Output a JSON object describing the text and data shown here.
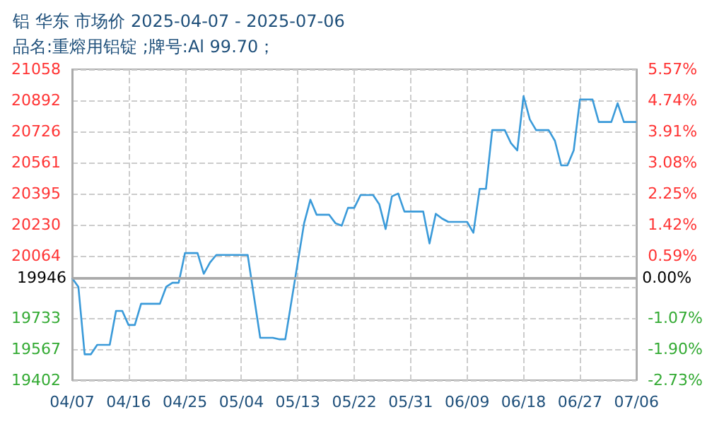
{
  "chart_data": {
    "type": "line",
    "title": "铝 华东 市场价 2025-04-07 - 2025-07-06",
    "subtitle": "品名:重熔用铝锭 ;牌号:Al 99.70；",
    "x": [
      "2025-04-07",
      "2025-04-08",
      "2025-04-09",
      "2025-04-10",
      "2025-04-11",
      "2025-04-13",
      "2025-04-14",
      "2025-04-15",
      "2025-04-16",
      "2025-04-17",
      "2025-04-18",
      "2025-04-21",
      "2025-04-22",
      "2025-04-23",
      "2025-04-24",
      "2025-04-25",
      "2025-04-27",
      "2025-04-28",
      "2025-04-29",
      "2025-04-30",
      "2025-05-05",
      "2025-05-07",
      "2025-05-09",
      "2025-05-10",
      "2025-05-11",
      "2025-05-14",
      "2025-05-15",
      "2025-05-16",
      "2025-05-18",
      "2025-05-19",
      "2025-05-20",
      "2025-05-21",
      "2025-05-22",
      "2025-05-23",
      "2025-05-25",
      "2025-05-26",
      "2025-05-27",
      "2025-05-28",
      "2025-05-29",
      "2025-05-30",
      "2025-06-02",
      "2025-06-03",
      "2025-06-04",
      "2025-06-05",
      "2025-06-06",
      "2025-06-09",
      "2025-06-10",
      "2025-06-11",
      "2025-06-12",
      "2025-06-13",
      "2025-06-15",
      "2025-06-16",
      "2025-06-17",
      "2025-06-18",
      "2025-06-19",
      "2025-06-20",
      "2025-06-22",
      "2025-06-23",
      "2025-06-24",
      "2025-06-25",
      "2025-06-26",
      "2025-06-27",
      "2025-06-29",
      "2025-06-30",
      "2025-07-02",
      "2025-07-03",
      "2025-07-04",
      "2025-07-06"
    ],
    "series": [
      {
        "color": "#3a9ad9",
        "values": [
          19946,
          19899,
          19540,
          19540,
          19590,
          19590,
          19771,
          19771,
          19696,
          19696,
          19809,
          19809,
          19899,
          19921,
          19921,
          20079,
          20079,
          19969,
          20029,
          20069,
          20069,
          19628,
          19628,
          19620,
          19620,
          20238,
          20363,
          20283,
          20283,
          20238,
          20225,
          20320,
          20320,
          20388,
          20388,
          20338,
          20207,
          20381,
          20396,
          20300,
          20300,
          20130,
          20288,
          20263,
          20245,
          20245,
          20187,
          20421,
          20421,
          20734,
          20734,
          20664,
          20626,
          20915,
          20790,
          20734,
          20734,
          20677,
          20546,
          20546,
          20626,
          20897,
          20897,
          20777,
          20777,
          20877,
          20777,
          20777
        ]
      }
    ],
    "xlim": [
      "2025-04-07",
      "2025-07-06"
    ],
    "xticks": [
      {
        "value": "2025-04-07",
        "label": "04/07"
      },
      {
        "value": "2025-04-16",
        "label": "04/16"
      },
      {
        "value": "2025-04-25",
        "label": "04/25"
      },
      {
        "value": "2025-05-04",
        "label": "05/04"
      },
      {
        "value": "2025-05-13",
        "label": "05/13"
      },
      {
        "value": "2025-05-22",
        "label": "05/22"
      },
      {
        "value": "2025-05-31",
        "label": "05/31"
      },
      {
        "value": "2025-06-09",
        "label": "06/09"
      },
      {
        "value": "2025-06-18",
        "label": "06/18"
      },
      {
        "value": "2025-06-27",
        "label": "06/27"
      },
      {
        "value": "2025-07-06",
        "label": "07/06"
      }
    ],
    "ylim": [
      19402,
      21058
    ],
    "yticks": [
      19402,
      19567,
      19733,
      {
        "value": 19899,
        "label": null
      },
      20064,
      20230,
      20395,
      20561,
      20726,
      20892,
      21058
    ],
    "y2lim": [
      -2.73,
      5.57
    ],
    "y2ticks": [
      {
        "value": -2.73,
        "label": "-2.73%"
      },
      {
        "value": -1.9,
        "label": "-1.90%"
      },
      {
        "value": -1.07,
        "label": "-1.07%"
      },
      {
        "value": -0.24,
        "label": null
      },
      {
        "value": 0.59,
        "label": "0.59%"
      },
      {
        "value": 1.42,
        "label": "1.42%"
      },
      {
        "value": 2.25,
        "label": "2.25%"
      },
      {
        "value": 3.08,
        "label": "3.08%"
      },
      {
        "value": 3.91,
        "label": "3.91%"
      },
      {
        "value": 4.74,
        "label": "4.74%"
      },
      {
        "value": 5.57,
        "label": "5.57%"
      }
    ],
    "ref_lines": [
      {
        "axis": "y",
        "value": 19946,
        "label": "19946",
        "color": "#aaaaaa"
      },
      {
        "axis": "y2",
        "value": 0,
        "label": "0.00%",
        "color": "#aaaaaa"
      }
    ],
    "grid": true,
    "marker": "none",
    "line_style": "solid"
  }
}
